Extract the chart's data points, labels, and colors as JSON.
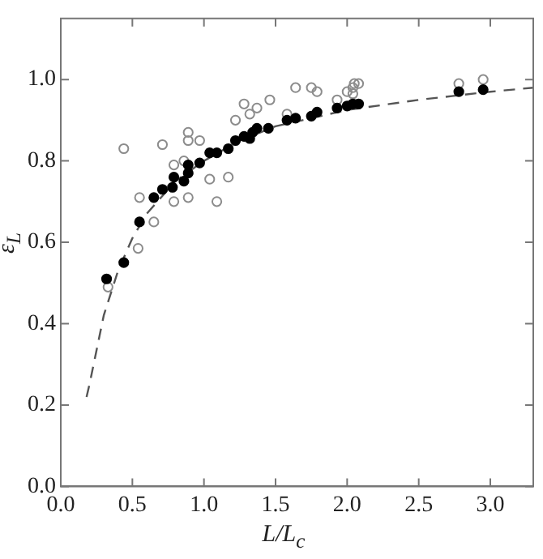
{
  "chart_data": {
    "type": "scatter",
    "xlabel": "L/L$_{c}$",
    "ylabel": "ε$_{L}$",
    "xlim": [
      0,
      3.3
    ],
    "xticks": [
      {
        "value": 0,
        "label": "0.0"
      },
      {
        "value": 0.5,
        "label": "0.5"
      },
      {
        "value": 1,
        "label": "1.0"
      },
      {
        "value": 1.5,
        "label": "1.5"
      },
      {
        "value": 2,
        "label": "2.0"
      },
      {
        "value": 2.5,
        "label": "2.5"
      },
      {
        "value": 3,
        "label": "3.0"
      }
    ],
    "ylim": [
      0,
      1.15
    ],
    "yticks": [
      {
        "value": 0,
        "label": "0.0"
      },
      {
        "value": 0.2,
        "label": "0.2"
      },
      {
        "value": 0.4,
        "label": "0.4"
      },
      {
        "value": 0.6,
        "label": "0.6"
      },
      {
        "value": 0.8,
        "label": "0.8"
      },
      {
        "value": 1,
        "label": "1.0"
      }
    ],
    "grid": false,
    "legend": false,
    "marker": "circle",
    "series": [
      {
        "color": "#000000",
        "x": [
          0.32,
          0.44,
          0.55,
          0.65,
          0.71,
          0.78,
          0.79,
          0.86,
          0.89,
          0.89,
          0.97,
          1.04,
          1.09,
          1.17,
          1.22,
          1.28,
          1.32,
          1.34,
          1.37,
          1.45,
          1.58,
          1.64,
          1.75,
          1.79,
          1.93,
          2.0,
          2.04,
          2.08,
          2.78,
          2.95
        ],
        "values": [
          0.51,
          0.55,
          0.65,
          0.71,
          0.73,
          0.735,
          0.76,
          0.75,
          0.79,
          0.77,
          0.795,
          0.82,
          0.82,
          0.83,
          0.85,
          0.86,
          0.855,
          0.87,
          0.88,
          0.88,
          0.9,
          0.905,
          0.91,
          0.92,
          0.93,
          0.935,
          0.94,
          0.94,
          0.97,
          0.975
        ]
      },
      {
        "color": "#8c8c8c",
        "x": [
          0.54,
          0.33,
          0.65,
          0.44,
          0.55,
          0.71,
          0.79,
          0.79,
          0.86,
          0.89,
          0.89,
          0.89,
          0.97,
          1.04,
          1.09,
          1.17,
          1.22,
          1.28,
          1.32,
          1.37,
          1.46,
          1.58,
          1.64,
          1.75,
          1.79,
          1.93,
          2.0,
          2.04,
          2.05,
          2.08,
          2.04,
          2.78,
          2.95
        ],
        "values": [
          0.585,
          0.49,
          0.65,
          0.83,
          0.71,
          0.84,
          0.79,
          0.7,
          0.8,
          0.71,
          0.87,
          0.85,
          0.85,
          0.755,
          0.7,
          0.76,
          0.9,
          0.94,
          0.915,
          0.93,
          0.95,
          0.915,
          0.98,
          0.98,
          0.97,
          0.95,
          0.97,
          0.98,
          0.99,
          0.99,
          0.965,
          0.99,
          1.0
        ]
      },
      {
        "type": "line",
        "color": "#555555",
        "line_style": "dashed",
        "marker": "none",
        "x": [
          0.18,
          0.2,
          0.3,
          0.4,
          0.5,
          0.6,
          0.8,
          1.0,
          1.25,
          1.5,
          2.0,
          2.5,
          3.0,
          3.3
        ],
        "values": [
          0.22,
          0.25,
          0.42,
          0.53,
          0.61,
          0.67,
          0.75,
          0.8,
          0.85,
          0.885,
          0.925,
          0.95,
          0.97,
          0.98
        ]
      }
    ]
  }
}
